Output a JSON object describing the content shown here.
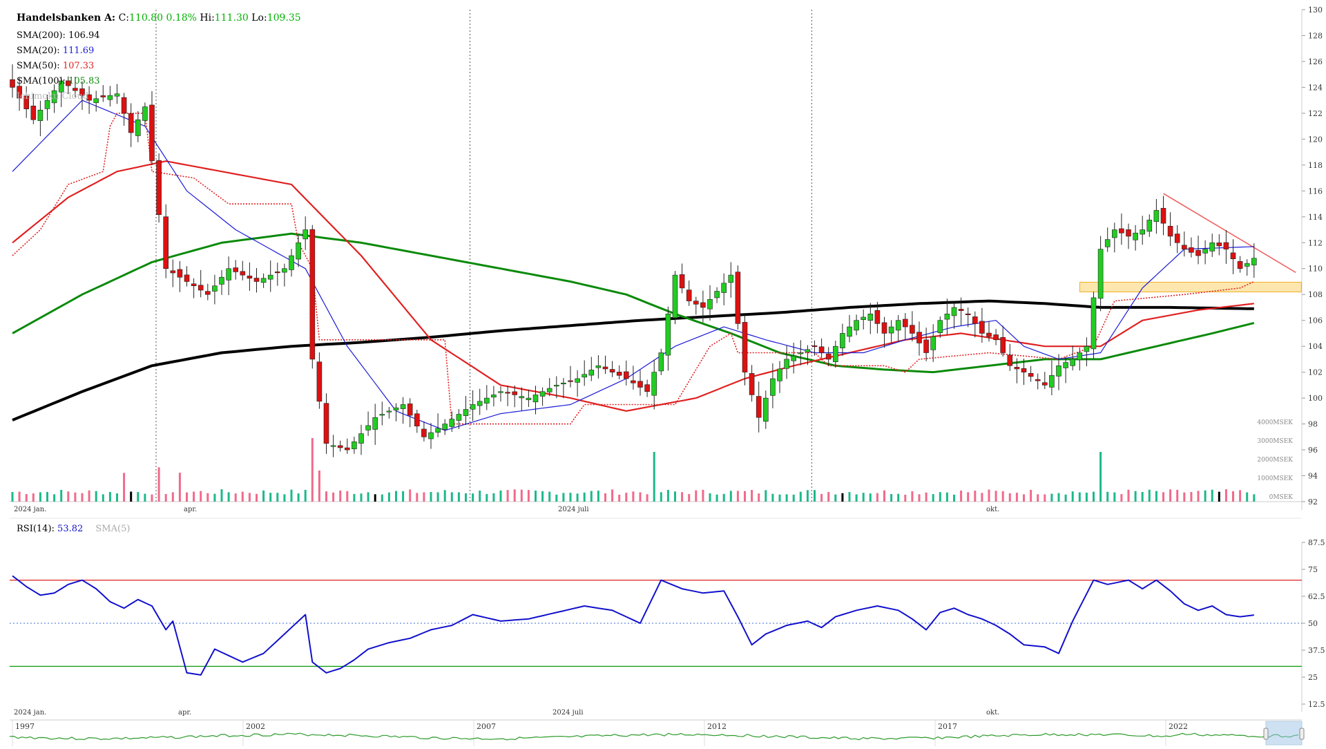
{
  "header": {
    "name": "Handelsbanken A:",
    "c_label": "C:",
    "c_value": "110.80",
    "c_change": "0.18%",
    "hi_label": "Hi:",
    "hi_value": "111.30",
    "lo_label": "Lo:",
    "lo_value": "109.35"
  },
  "legend": {
    "sma200_label": "SMA(200):",
    "sma200_value": "106.94",
    "sma200_color": "#000000",
    "sma20_label": "SMA(20):",
    "sma20_value": "111.69",
    "sma20_color": "#1a1ad6",
    "sma50_label": "SMA(50):",
    "sma50_value": "107.33",
    "sma50_color": "#e02020",
    "sma100_label": "SMA(100):",
    "sma100_value": "105.83",
    "sma100_color": "#0a8a0a",
    "ichimoku_label": "Ichimoku Cloud"
  },
  "rsi_legend": {
    "rsi_label": "RSI(14):",
    "rsi_value": "53.82",
    "sma_label": "SMA(5)"
  },
  "chart_data": [
    {
      "type": "candlestick",
      "name": "price",
      "x_labels": [
        "2024 jan.",
        "apr.",
        "2024 juli",
        "okt."
      ],
      "ylim": [
        92,
        130
      ],
      "y_ticks": [
        92,
        94,
        96,
        98,
        100,
        102,
        104,
        106,
        108,
        110,
        112,
        114,
        116,
        118,
        120,
        122,
        124,
        126,
        128,
        130
      ],
      "volume_ticks": [
        "0MSEK",
        "1000MSEK",
        "2000MSEK",
        "3000MSEK",
        "4000MSEK"
      ],
      "close_keypoints": [
        [
          0,
          124.0
        ],
        [
          3,
          121.5
        ],
        [
          7,
          124.5
        ],
        [
          11,
          123.0
        ],
        [
          15,
          123.5
        ],
        [
          17,
          120.5
        ],
        [
          19,
          122.5
        ],
        [
          22,
          110.0
        ],
        [
          25,
          109.0
        ],
        [
          28,
          108.0
        ],
        [
          31,
          110.0
        ],
        [
          35,
          109.0
        ],
        [
          39,
          110.0
        ],
        [
          42,
          113.0
        ],
        [
          43,
          103.0
        ],
        [
          45,
          96.5
        ],
        [
          48,
          96.0
        ],
        [
          52,
          98.5
        ],
        [
          56,
          99.5
        ],
        [
          59,
          97.0
        ],
        [
          62,
          98.0
        ],
        [
          66,
          99.5
        ],
        [
          70,
          100.5
        ],
        [
          74,
          100.0
        ],
        [
          78,
          101.0
        ],
        [
          81,
          101.5
        ],
        [
          84,
          102.5
        ],
        [
          88,
          101.5
        ],
        [
          91,
          100.5
        ],
        [
          93,
          103.5
        ],
        [
          95,
          109.5
        ],
        [
          97,
          107.5
        ],
        [
          99,
          107.0
        ],
        [
          103,
          109.5
        ],
        [
          105,
          102.0
        ],
        [
          107,
          98.5
        ],
        [
          109,
          101.5
        ],
        [
          111,
          103.0
        ],
        [
          113,
          103.5
        ],
        [
          115,
          104.0
        ],
        [
          117,
          103.0
        ],
        [
          119,
          105.0
        ],
        [
          121,
          106.0
        ],
        [
          123,
          106.5
        ],
        [
          125,
          105.0
        ],
        [
          127,
          106.0
        ],
        [
          129,
          105.0
        ],
        [
          131,
          103.5
        ],
        [
          133,
          106.0
        ],
        [
          135,
          107.0
        ],
        [
          137,
          106.5
        ],
        [
          139,
          105.0
        ],
        [
          141,
          104.5
        ],
        [
          143,
          102.5
        ],
        [
          145,
          102.0
        ],
        [
          148,
          101.0
        ],
        [
          150,
          102.5
        ],
        [
          152,
          103.0
        ],
        [
          154,
          104.0
        ],
        [
          156,
          111.5
        ],
        [
          158,
          113.0
        ],
        [
          160,
          112.5
        ],
        [
          162,
          113.0
        ],
        [
          164,
          114.5
        ],
        [
          166,
          112.5
        ],
        [
          168,
          111.5
        ],
        [
          170,
          111.0
        ],
        [
          172,
          112.0
        ],
        [
          174,
          111.5
        ],
        [
          176,
          110.0
        ],
        [
          178,
          110.8
        ]
      ],
      "candle_count": 179,
      "sma20": {
        "name": "SMA(20)",
        "color": "#1a1ad6",
        "keypoints": [
          [
            0,
            117.5
          ],
          [
            10,
            123
          ],
          [
            19,
            121
          ],
          [
            25,
            116
          ],
          [
            32,
            113
          ],
          [
            42,
            110
          ],
          [
            48,
            104
          ],
          [
            55,
            99
          ],
          [
            62,
            97.5
          ],
          [
            70,
            98.8
          ],
          [
            80,
            99.5
          ],
          [
            88,
            101.5
          ],
          [
            95,
            104
          ],
          [
            102,
            105.5
          ],
          [
            108,
            104.5
          ],
          [
            115,
            103.5
          ],
          [
            122,
            103.5
          ],
          [
            128,
            104.5
          ],
          [
            135,
            105.5
          ],
          [
            141,
            106
          ],
          [
            145,
            104
          ],
          [
            150,
            103
          ],
          [
            156,
            103.5
          ],
          [
            162,
            108.5
          ],
          [
            168,
            111.5
          ],
          [
            178,
            111.7
          ]
        ]
      },
      "sma50": {
        "name": "SMA(50)",
        "color": "#e02020",
        "keypoints": [
          [
            0,
            112
          ],
          [
            8,
            115.5
          ],
          [
            15,
            117.5
          ],
          [
            22,
            118.3
          ],
          [
            30,
            117.5
          ],
          [
            40,
            116.5
          ],
          [
            50,
            111
          ],
          [
            60,
            104.5
          ],
          [
            70,
            101
          ],
          [
            80,
            100
          ],
          [
            88,
            99
          ],
          [
            98,
            100
          ],
          [
            105,
            101.5
          ],
          [
            112,
            102.5
          ],
          [
            120,
            103.5
          ],
          [
            128,
            104.5
          ],
          [
            136,
            105
          ],
          [
            142,
            104.5
          ],
          [
            148,
            104
          ],
          [
            156,
            104
          ],
          [
            162,
            106
          ],
          [
            170,
            106.8
          ],
          [
            178,
            107.3
          ]
        ]
      },
      "sma100": {
        "name": "SMA(100)",
        "color": "#0a8a0a",
        "keypoints": [
          [
            0,
            105
          ],
          [
            10,
            108
          ],
          [
            20,
            110.5
          ],
          [
            30,
            112
          ],
          [
            40,
            112.7
          ],
          [
            50,
            112
          ],
          [
            60,
            111
          ],
          [
            70,
            110
          ],
          [
            80,
            109
          ],
          [
            88,
            108
          ],
          [
            95,
            106.5
          ],
          [
            103,
            105
          ],
          [
            110,
            103.5
          ],
          [
            118,
            102.5
          ],
          [
            125,
            102.2
          ],
          [
            132,
            102
          ],
          [
            140,
            102.5
          ],
          [
            148,
            103
          ],
          [
            156,
            103
          ],
          [
            164,
            104
          ],
          [
            172,
            105
          ],
          [
            178,
            105.8
          ]
        ]
      },
      "sma200": {
        "name": "SMA(200)",
        "color": "#000000",
        "keypoints": [
          [
            0,
            98.3
          ],
          [
            10,
            100.5
          ],
          [
            20,
            102.5
          ],
          [
            30,
            103.5
          ],
          [
            40,
            104
          ],
          [
            50,
            104.3
          ],
          [
            60,
            104.7
          ],
          [
            70,
            105.2
          ],
          [
            80,
            105.6
          ],
          [
            90,
            106
          ],
          [
            100,
            106.3
          ],
          [
            110,
            106.6
          ],
          [
            120,
            107
          ],
          [
            130,
            107.3
          ],
          [
            140,
            107.5
          ],
          [
            148,
            107.3
          ],
          [
            156,
            107
          ],
          [
            166,
            107
          ],
          [
            178,
            106.9
          ]
        ]
      },
      "ichimoku_line": {
        "name": "Ichimoku Cloud",
        "color": "#e02020",
        "keypoints": [
          [
            0,
            111
          ],
          [
            4,
            113
          ],
          [
            8,
            116.5
          ],
          [
            13,
            117.5
          ],
          [
            14,
            121
          ],
          [
            15,
            122
          ],
          [
            19,
            122
          ],
          [
            20,
            117.5
          ],
          [
            26,
            117
          ],
          [
            31,
            115
          ],
          [
            40,
            115
          ],
          [
            41,
            112
          ],
          [
            43,
            110
          ],
          [
            44,
            104.5
          ],
          [
            62,
            104.5
          ],
          [
            63,
            98
          ],
          [
            80,
            98
          ],
          [
            82,
            99.5
          ],
          [
            95,
            99.5
          ],
          [
            100,
            104
          ],
          [
            103,
            105
          ],
          [
            104,
            103.5
          ],
          [
            115,
            103.5
          ],
          [
            117,
            102.5
          ],
          [
            125,
            102.5
          ],
          [
            128,
            102
          ],
          [
            130,
            103
          ],
          [
            140,
            103.5
          ],
          [
            150,
            103
          ],
          [
            155,
            104
          ],
          [
            158,
            107.5
          ],
          [
            168,
            108
          ],
          [
            176,
            108.5
          ],
          [
            178,
            109
          ]
        ]
      },
      "support_zone": {
        "from": 108.2,
        "to": 108.7,
        "x_start": 155,
        "x_end": 183
      },
      "trendline": {
        "start": [
          165,
          115.8
        ],
        "end": [
          183,
          109.7
        ]
      }
    },
    {
      "type": "line",
      "name": "RSI(14)",
      "ylim": [
        12.5,
        87.5
      ],
      "y_ticks": [
        12.5,
        25,
        37.5,
        50,
        62.5,
        75,
        87.5
      ],
      "levels": {
        "overbought": 70,
        "oversold": 30,
        "mid": 50
      },
      "x_labels": [
        "2024 jan.",
        "apr.",
        "2024 juli",
        "okt."
      ],
      "keypoints": [
        [
          0,
          72
        ],
        [
          2,
          67
        ],
        [
          4,
          63
        ],
        [
          6,
          64
        ],
        [
          8,
          68
        ],
        [
          10,
          70
        ],
        [
          12,
          66
        ],
        [
          14,
          60
        ],
        [
          16,
          57
        ],
        [
          18,
          61
        ],
        [
          20,
          58
        ],
        [
          22,
          47
        ],
        [
          23,
          51
        ],
        [
          25,
          27
        ],
        [
          27,
          26
        ],
        [
          29,
          38
        ],
        [
          33,
          32
        ],
        [
          36,
          36
        ],
        [
          39,
          45
        ],
        [
          42,
          54
        ],
        [
          43,
          32
        ],
        [
          45,
          27
        ],
        [
          47,
          29
        ],
        [
          49,
          33
        ],
        [
          51,
          38
        ],
        [
          54,
          41
        ],
        [
          57,
          43
        ],
        [
          60,
          47
        ],
        [
          63,
          49
        ],
        [
          66,
          54
        ],
        [
          70,
          51
        ],
        [
          74,
          52
        ],
        [
          78,
          55
        ],
        [
          82,
          58
        ],
        [
          86,
          56
        ],
        [
          90,
          50
        ],
        [
          93,
          70
        ],
        [
          96,
          66
        ],
        [
          99,
          64
        ],
        [
          102,
          65
        ],
        [
          104,
          53
        ],
        [
          106,
          40
        ],
        [
          108,
          45
        ],
        [
          111,
          49
        ],
        [
          114,
          51
        ],
        [
          116,
          48
        ],
        [
          118,
          53
        ],
        [
          121,
          56
        ],
        [
          124,
          58
        ],
        [
          127,
          56
        ],
        [
          129,
          52
        ],
        [
          131,
          47
        ],
        [
          133,
          55
        ],
        [
          135,
          57
        ],
        [
          137,
          54
        ],
        [
          139,
          52
        ],
        [
          141,
          49
        ],
        [
          143,
          45
        ],
        [
          145,
          40
        ],
        [
          148,
          39
        ],
        [
          150,
          36
        ],
        [
          152,
          51
        ],
        [
          155,
          70
        ],
        [
          157,
          68
        ],
        [
          160,
          70
        ],
        [
          162,
          66
        ],
        [
          164,
          70
        ],
        [
          166,
          65
        ],
        [
          168,
          59
        ],
        [
          170,
          56
        ],
        [
          172,
          58
        ],
        [
          174,
          54
        ],
        [
          176,
          53
        ],
        [
          178,
          53.8
        ]
      ]
    }
  ],
  "navigator": {
    "years": [
      "1997",
      "2002",
      "2007",
      "2012",
      "2017",
      "2022"
    ]
  },
  "colors": {
    "up": "#22cc22",
    "down": "#dd1111",
    "volume_up": "#1db88a",
    "volume_down": "#f06a8a",
    "rsi_line": "#1010cc",
    "support_zone_fill": "#fde3a0",
    "support_zone_stroke": "#f0a000"
  }
}
